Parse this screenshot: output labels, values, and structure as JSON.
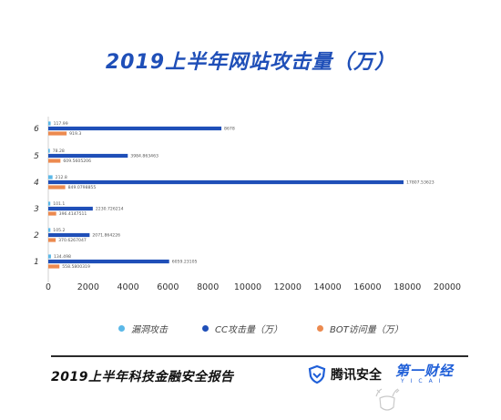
{
  "title": "2019上半年网站攻击量（万）",
  "footer_title": "2019上半年科技金融安全报告",
  "brands": {
    "tencent": "腾讯安全",
    "yicai": "第一财经",
    "yicai_sub": "YICAI"
  },
  "chart_data": {
    "type": "bar",
    "orientation": "horizontal",
    "categories": [
      "1",
      "2",
      "3",
      "4",
      "5",
      "6"
    ],
    "series": [
      {
        "name": "漏洞攻击",
        "color": "#5bb8e8",
        "values": [
          134.498,
          105.2,
          101.1,
          212.8,
          78.28,
          117.99
        ],
        "labels": [
          "134.498",
          "105.2",
          "101.1",
          "212.8",
          "78.28",
          "117.99"
        ]
      },
      {
        "name": "CC攻击量（万）",
        "color": "#1f4fb8",
        "values": [
          6059.23,
          2071.86,
          2230.73,
          17807.54,
          3984.86,
          8678
        ],
        "labels": [
          "6059.23105",
          "2071.864226",
          "2230.726214",
          "17807.53623",
          "3984.863463",
          "8678"
        ]
      },
      {
        "name": "BOT访问量（万）",
        "color": "#ec8a4f",
        "values": [
          558.58,
          370.63,
          396.41,
          849.08,
          609.56,
          919.3
        ],
        "labels": [
          "558.5800319",
          "370.6267047",
          "396.4147511",
          "849.0798855",
          "609.5605206",
          "919.3"
        ]
      }
    ],
    "x_ticks": [
      "0",
      "2000",
      "4000",
      "6000",
      "8000",
      "10000",
      "12000",
      "14000",
      "16000",
      "18000",
      "20000"
    ],
    "xlim": [
      0,
      20000
    ],
    "grid": false,
    "legend_position": "bottom"
  }
}
